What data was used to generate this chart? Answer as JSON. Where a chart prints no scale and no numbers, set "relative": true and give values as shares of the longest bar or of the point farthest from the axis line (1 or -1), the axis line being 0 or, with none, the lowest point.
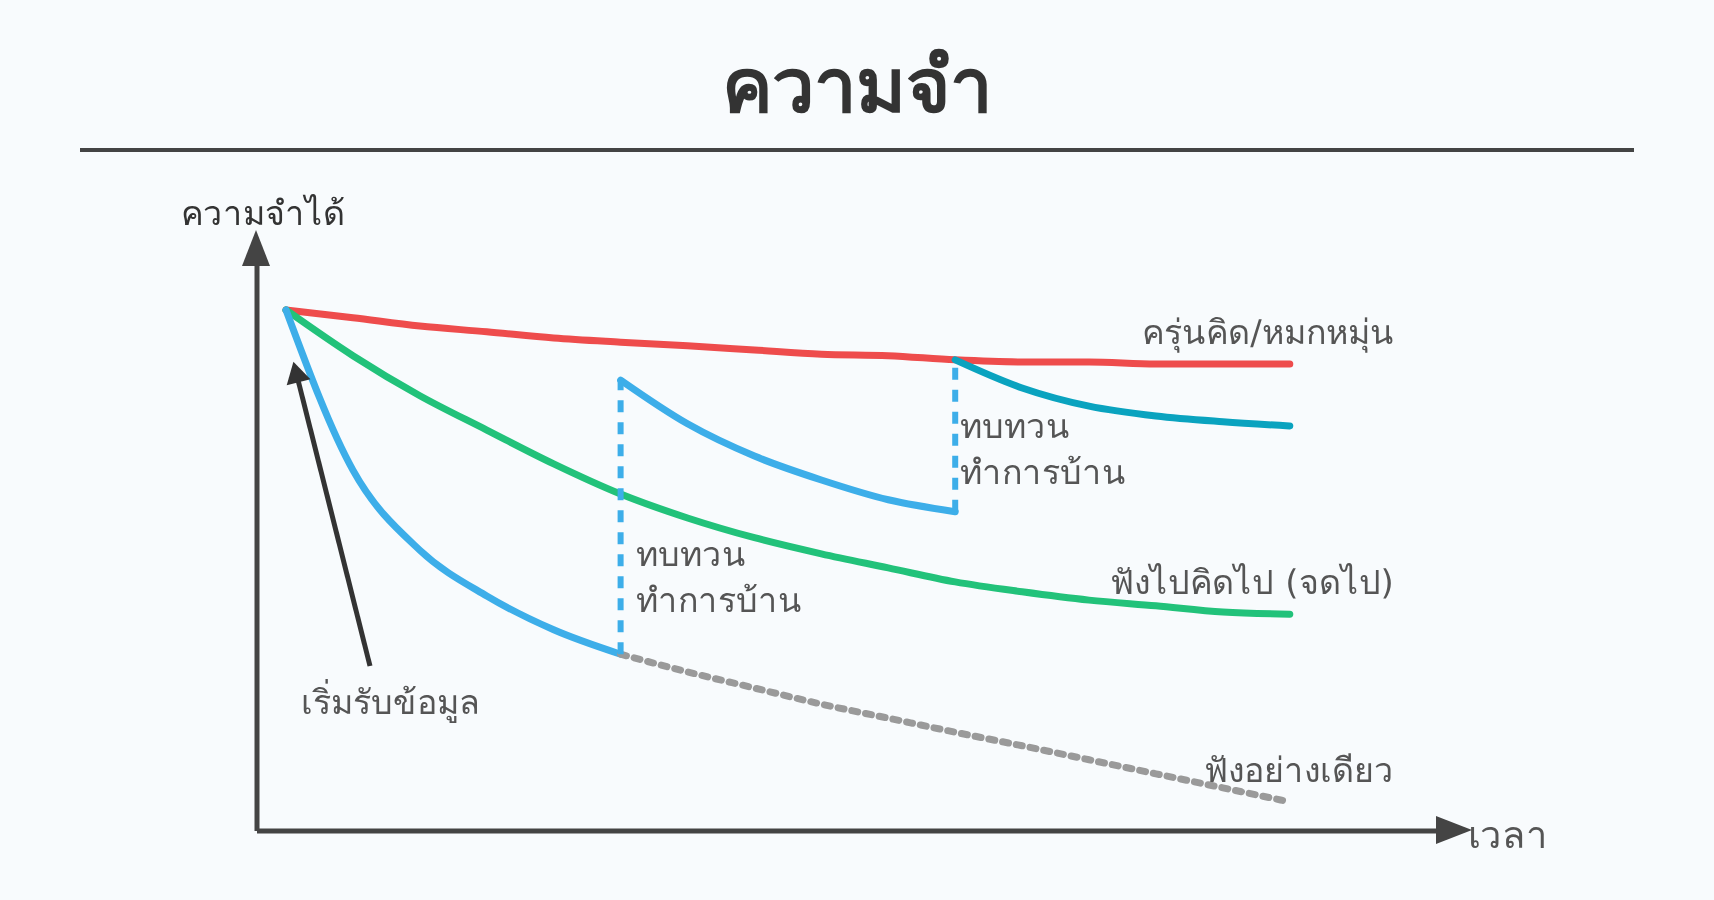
{
  "chart_data": {
    "type": "line",
    "title": "ความจำ",
    "ylabel": "ความจำได้",
    "relative": true,
    "categories": [
      null,
      null,
      null,
      null,
      null,
      null,
      null,
      null,
      null,
      null,
      null,
      null,
      null,
      null,
      null,
      null
    ],
    "series": [
      {
        "name": "ครุ่นคิด/หมกหมุ่น",
        "color": "#ee4c4c",
        "values": [
          1,
          0.985,
          0.969,
          0.958,
          0.946,
          0.938,
          0.931,
          0.923,
          0.915,
          0.912,
          0.904,
          0.9,
          0.9,
          0.896,
          0.896,
          0.896
        ]
      },
      {
        "name": "ฟังไปคิดไป (จดไป)",
        "color": "#22c27a",
        "values": [
          1,
          0.912,
          0.835,
          0.769,
          0.704,
          0.646,
          0.6,
          0.562,
          0.531,
          0.504,
          0.477,
          0.458,
          0.442,
          0.431,
          0.419,
          0.415
        ]
      },
      {
        "color": "#3daee9",
        "values": [
          1,
          0.692,
          0.538,
          0.45,
          0.385,
          0.338,
          null,
          null,
          null,
          null,
          null,
          null,
          null,
          null,
          null,
          null
        ]
      },
      {
        "name": "ฟังอย่างเดียว",
        "color": "#9a9a9a",
        "line_style": "dotted",
        "values": [
          null,
          null,
          null,
          null,
          null,
          0.338,
          0.304,
          0.273,
          0.242,
          0.215,
          0.188,
          0.162,
          0.135,
          0.108,
          0.081,
          0.054
        ]
      },
      {
        "color": "#3daee9",
        "values": [
          null,
          null,
          null,
          null,
          null,
          0.865,
          0.781,
          0.719,
          0.673,
          0.635,
          0.612,
          null,
          null,
          null,
          null,
          null
        ]
      },
      {
        "color": "#0aa3bf",
        "values": [
          null,
          null,
          null,
          null,
          null,
          null,
          null,
          null,
          null,
          null,
          0.904,
          0.85,
          0.815,
          0.796,
          0.785,
          0.777
        ]
      }
    ],
    "annotations": [
      "เริ่มรับข้อมูล",
      "ทบทวน\nทำการบ้าน",
      "ทบทวน\nทำการบ้าน",
      "เวลา"
    ]
  }
}
